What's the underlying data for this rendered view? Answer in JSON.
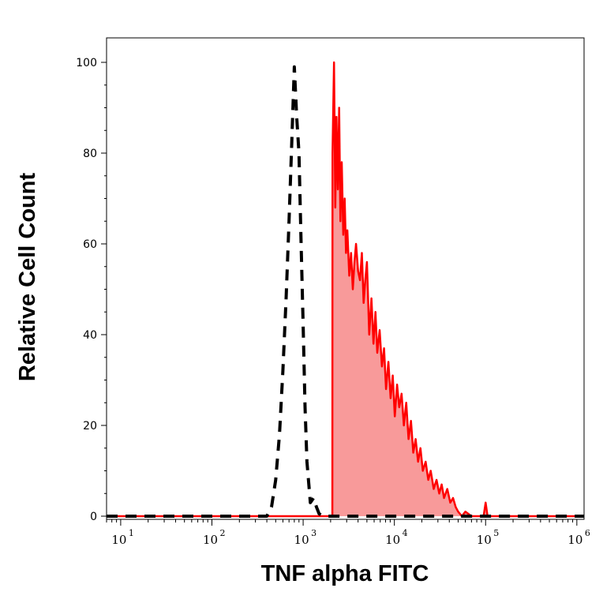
{
  "chart_data": {
    "type": "area",
    "title": "",
    "xlabel": "TNF alpha FITC",
    "ylabel": "Relative Cell Count",
    "xscale": "log",
    "xlim": [
      7,
      1200000
    ],
    "ylim": [
      -1,
      100
    ],
    "grid": false,
    "legend": "none",
    "xticks": [
      {
        "base": "10",
        "exp": "1",
        "value": 10
      },
      {
        "base": "10",
        "exp": "2",
        "value": 100
      },
      {
        "base": "10",
        "exp": "3",
        "value": 1000
      },
      {
        "base": "10",
        "exp": "4",
        "value": 10000
      },
      {
        "base": "10",
        "exp": "5",
        "value": 100000
      },
      {
        "base": "10",
        "exp": "6",
        "value": 1000000
      }
    ],
    "yticks": [
      {
        "label": "0",
        "value": 0
      },
      {
        "label": "20",
        "value": 20
      },
      {
        "label": "40",
        "value": 40
      },
      {
        "label": "60",
        "value": 60
      },
      {
        "label": "80",
        "value": 80
      },
      {
        "label": "100",
        "value": 100
      }
    ],
    "series": [
      {
        "style": "dashed",
        "color": "#000000",
        "filled": false,
        "x": [
          7,
          400,
          450,
          500,
          550,
          600,
          650,
          700,
          750,
          800,
          850,
          900,
          950,
          1000,
          1050,
          1100,
          1200,
          1300,
          1400,
          1500,
          1700,
          2000,
          1200000
        ],
        "y": [
          0,
          0,
          2,
          8,
          18,
          32,
          48,
          65,
          82,
          99,
          88,
          80,
          60,
          42,
          24,
          12,
          3,
          4,
          2,
          0.5,
          0,
          0,
          0
        ]
      },
      {
        "style": "solid",
        "color": "#ff0000",
        "fill": "#f89a9a",
        "filled": true,
        "x": [
          7,
          2090,
          2100,
          2180,
          2250,
          2320,
          2400,
          2480,
          2560,
          2650,
          2750,
          2850,
          2950,
          3050,
          3200,
          3350,
          3500,
          3650,
          3800,
          4000,
          4200,
          4400,
          4600,
          4800,
          5000,
          5300,
          5600,
          5900,
          6200,
          6500,
          6900,
          7300,
          7700,
          8100,
          8600,
          9100,
          9600,
          10100,
          10700,
          11300,
          12000,
          12700,
          13500,
          14300,
          15200,
          16100,
          17100,
          18200,
          19300,
          20500,
          22000,
          23500,
          25000,
          27000,
          29000,
          31000,
          33000,
          35000,
          38000,
          41000,
          44000,
          47000,
          50000,
          55000,
          60000,
          70000,
          85000,
          95000,
          100000,
          105000,
          110000,
          120000,
          1200000
        ],
        "y": [
          0,
          0,
          80,
          100,
          68,
          88,
          72,
          90,
          65,
          78,
          62,
          70,
          58,
          63,
          53,
          58,
          50,
          56,
          60,
          54,
          52,
          58,
          47,
          52,
          56,
          40,
          48,
          38,
          45,
          36,
          41,
          33,
          37,
          28,
          34,
          26,
          31,
          22,
          29,
          24,
          27,
          20,
          25,
          17,
          21,
          14,
          17,
          12,
          15,
          10,
          12,
          8,
          10,
          6,
          8,
          5,
          7,
          4,
          6,
          3,
          4,
          2,
          1,
          0,
          1,
          0,
          0,
          0,
          3,
          0,
          0,
          0,
          0
        ]
      }
    ]
  }
}
